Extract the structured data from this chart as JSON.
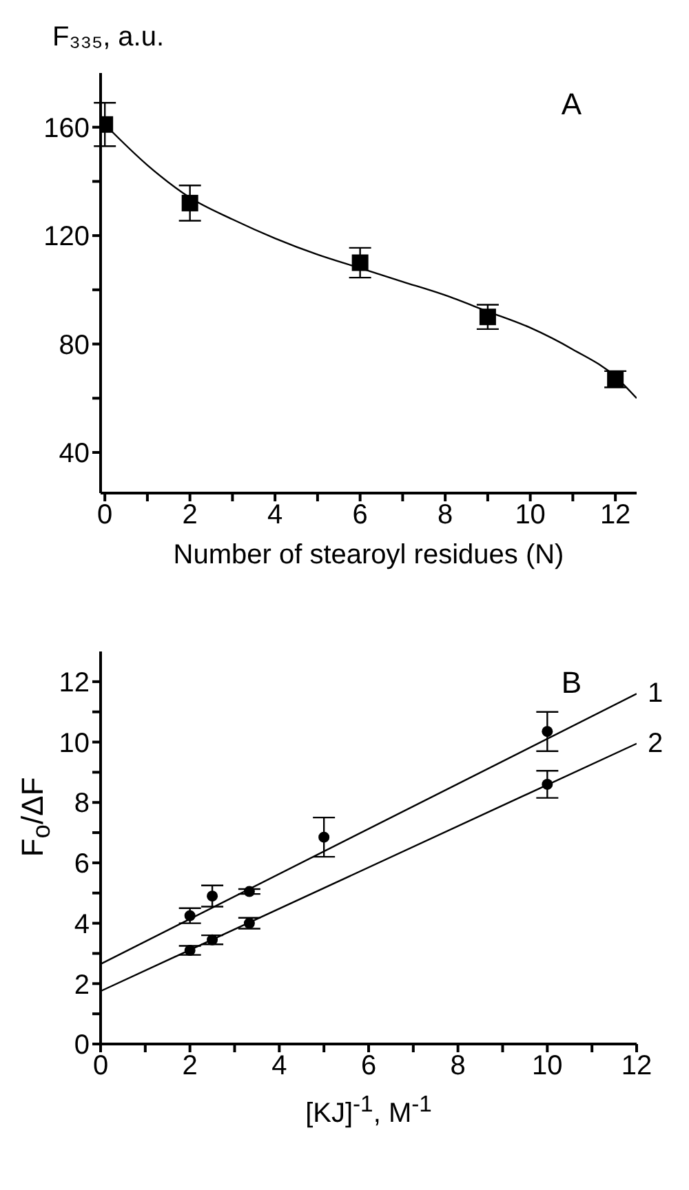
{
  "chart_data": [
    {
      "type": "scatter",
      "xlabel": "Number of stearoyl residues (N)",
      "ylabel": "F₃₃₅, a.u.",
      "annotations": [
        "A"
      ],
      "xlim": [
        -0.1,
        12.5
      ],
      "ylim": [
        25,
        180
      ],
      "xticks": [
        0,
        {
          "value": 1,
          "label": null
        },
        2,
        {
          "value": 3,
          "label": null
        },
        4,
        {
          "value": 5,
          "label": null
        },
        6,
        {
          "value": 7,
          "label": null
        },
        8,
        {
          "value": 9,
          "label": null
        },
        10,
        {
          "value": 11,
          "label": null
        },
        12
      ],
      "yticks": [
        40,
        {
          "value": 60,
          "label": null
        },
        80,
        {
          "value": 100,
          "label": null
        },
        120,
        {
          "value": 140,
          "label": null
        },
        160
      ],
      "grid": false,
      "legend": false,
      "line_style": "solid",
      "series": [
        {
          "color": "#000000",
          "marker": "square",
          "x": [
            0,
            2,
            6,
            9,
            12
          ],
          "values": [
            161,
            132,
            110,
            90,
            67
          ],
          "errors": [
            8,
            6.5,
            5.5,
            4.5,
            3
          ]
        },
        {
          "type": "line",
          "color": "#000000",
          "marker": "none",
          "x": [
            0,
            1,
            2,
            3,
            4,
            5,
            6,
            7,
            8,
            9,
            10,
            11,
            12,
            12.5
          ],
          "values": [
            161,
            146,
            134,
            126,
            119,
            113,
            108,
            103,
            98,
            92,
            86,
            78,
            68,
            60
          ]
        }
      ]
    },
    {
      "type": "scatter",
      "xlabel": "[KJ]$^{-1}$, M$^{-1}$",
      "ylabel": "F$_{o}$/ΔF",
      "annotations": [
        "B"
      ],
      "xlim": [
        0,
        12
      ],
      "ylim": [
        0,
        13
      ],
      "xticks": [
        0,
        {
          "value": 1,
          "label": null
        },
        2,
        {
          "value": 3,
          "label": null
        },
        4,
        {
          "value": 5,
          "label": null
        },
        6,
        {
          "value": 7,
          "label": null
        },
        8,
        {
          "value": 9,
          "label": null
        },
        10,
        {
          "value": 11,
          "label": null
        },
        12
      ],
      "yticks": [
        0,
        {
          "value": 1,
          "label": null
        },
        2,
        {
          "value": 3,
          "label": null
        },
        4,
        {
          "value": 5,
          "label": null
        },
        6,
        {
          "value": 7,
          "label": null
        },
        8,
        {
          "value": 9,
          "label": null
        },
        10,
        {
          "value": 11,
          "label": null
        },
        12
      ],
      "grid": false,
      "legend": false,
      "line_style": "solid",
      "series": [
        {
          "color": "#000000",
          "marker": "circle",
          "x": [
            2,
            2.5,
            3.33,
            5,
            10
          ],
          "values": [
            4.25,
            4.9,
            5.05,
            6.85,
            10.35
          ],
          "errors": [
            0.25,
            0.35,
            0.08,
            0.65,
            0.65
          ]
        },
        {
          "color": "#000000",
          "marker": "circle",
          "x": [
            2,
            2.5,
            3.33,
            10
          ],
          "values": [
            3.1,
            3.45,
            4.0,
            8.6
          ],
          "errors": [
            0.15,
            0.15,
            0.18,
            0.45
          ]
        },
        {
          "type": "line",
          "name": "1",
          "color": "#000000",
          "marker": "none",
          "x": [
            0,
            12
          ],
          "values": [
            2.65,
            11.6
          ]
        },
        {
          "type": "line",
          "name": "2",
          "color": "#000000",
          "marker": "none",
          "x": [
            0,
            12
          ],
          "values": [
            1.75,
            9.95
          ]
        }
      ]
    }
  ]
}
